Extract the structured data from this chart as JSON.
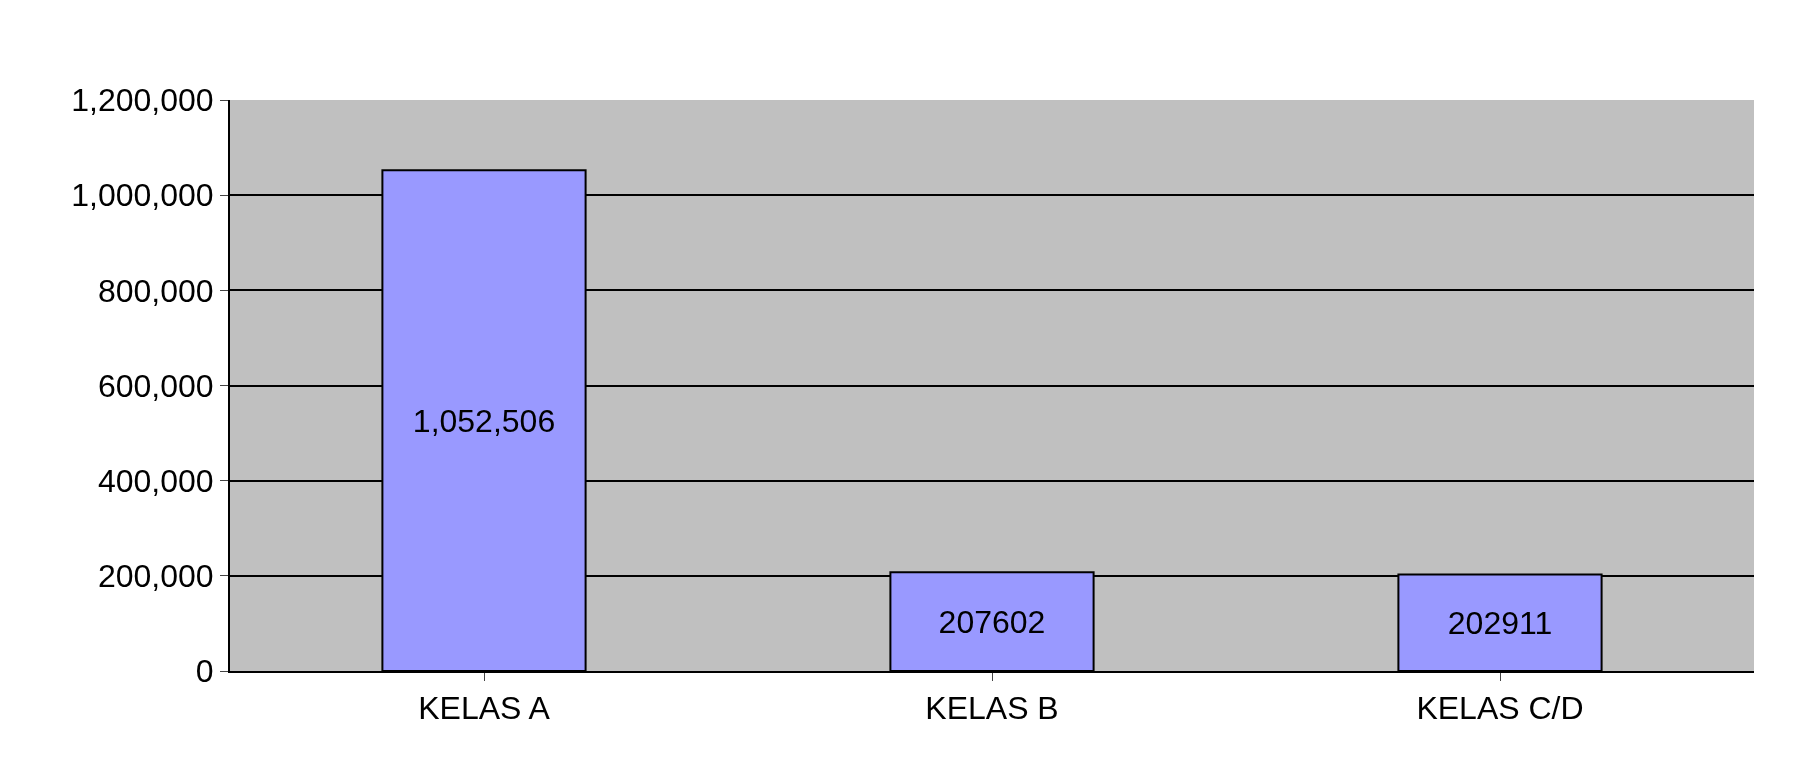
{
  "chart_data": {
    "type": "bar",
    "categories": [
      "KELAS A",
      "KELAS B",
      "KELAS C/D"
    ],
    "values": [
      1052506,
      207602,
      202911
    ],
    "value_labels": [
      "1,052,506",
      "207602",
      "202911"
    ],
    "color": "#9999ff",
    "ylim": [
      0,
      1200000
    ],
    "yticks": [
      0,
      {
        "value": 200000,
        "label": "200,000"
      },
      {
        "value": 400000,
        "label": "400,000"
      },
      {
        "value": 600000,
        "label": "600,000"
      },
      {
        "value": 800000,
        "label": "800,000"
      },
      {
        "value": 1000000,
        "label": "1,000,000"
      },
      {
        "value": 1200000,
        "label": "1,200,000"
      }
    ],
    "grid": true
  }
}
